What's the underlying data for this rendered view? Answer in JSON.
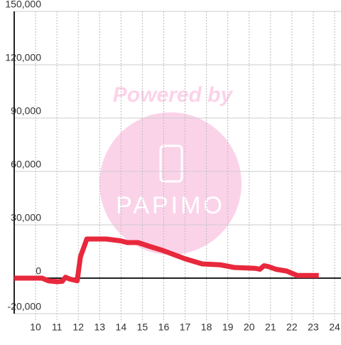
{
  "chart_data": {
    "type": "line",
    "watermark": {
      "title": "Powered by",
      "logo": "PAPIMO"
    },
    "x": [
      9.0,
      10.3,
      10.6,
      11.0,
      11.25,
      11.4,
      11.6,
      11.95,
      12.1,
      12.4,
      12.97,
      13.3,
      13.97,
      14.3,
      14.8,
      15.3,
      15.97,
      16.97,
      17.8,
      18.64,
      19.3,
      20.3,
      20.5,
      20.7,
      20.9,
      21.25,
      21.75,
      22.25,
      23.26
    ],
    "series": [
      {
        "color": "#e8283c",
        "values": [
          0,
          0,
          -1500,
          -2000,
          -1800,
          500,
          -500,
          -1500,
          12000,
          22000,
          22000,
          22000,
          21000,
          20000,
          20000,
          18000,
          15500,
          11000,
          8000,
          7500,
          6000,
          5500,
          5000,
          7000,
          6500,
          5000,
          4000,
          1500,
          1500
        ]
      }
    ],
    "xlim": [
      9,
      24.3
    ],
    "xticks": [
      10,
      11,
      12,
      13,
      14,
      15,
      16,
      17,
      18,
      19,
      20,
      21,
      22,
      23,
      24
    ],
    "ylim": [
      -20000,
      150000
    ],
    "yticks": [
      {
        "value": -20000,
        "label": "-20,000"
      },
      0,
      {
        "value": 30000,
        "label": "30,000"
      },
      {
        "value": 60000,
        "label": "60,000"
      },
      {
        "value": 90000,
        "label": "90,000"
      },
      {
        "value": 120000,
        "label": "120,000"
      },
      {
        "value": 150000,
        "label": "150,000"
      }
    ],
    "grid": true
  }
}
